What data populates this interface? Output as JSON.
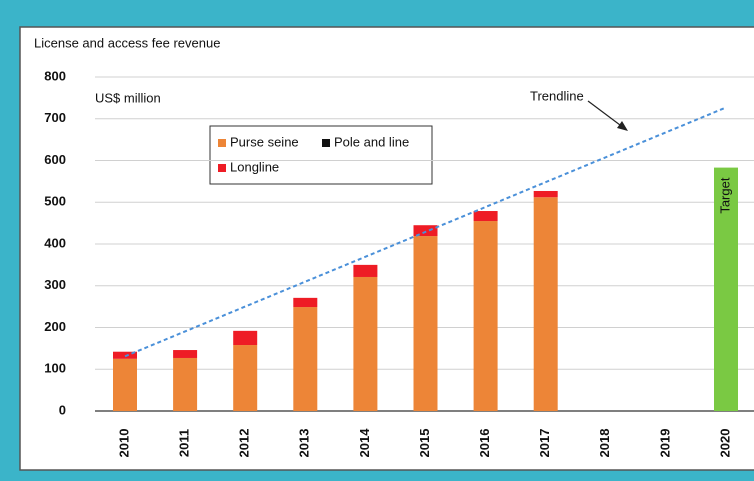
{
  "chart_data": {
    "type": "bar",
    "stacked": true,
    "title": "License and access fee revenue",
    "y_label": "US$ million",
    "categories": [
      "2010",
      "2011",
      "2012",
      "2013",
      "2014",
      "2015",
      "2016",
      "2017",
      "2018",
      "2019",
      "2020"
    ],
    "series": [
      {
        "name": "Purse seine",
        "color": "#ed8537",
        "values": [
          125,
          127,
          158,
          249,
          321,
          419,
          455,
          512,
          null,
          null,
          null
        ]
      },
      {
        "name": "Longline",
        "color": "#ee1c25",
        "values": [
          17,
          19,
          34,
          22,
          29,
          26,
          24,
          15,
          null,
          null,
          null
        ]
      },
      {
        "name": "Pole and line",
        "color": "#111111",
        "values": [
          0,
          0,
          0,
          0,
          0,
          0,
          0,
          0,
          null,
          null,
          null
        ]
      },
      {
        "name": "Target",
        "color": "#7ac943",
        "values": [
          null,
          null,
          null,
          null,
          null,
          null,
          null,
          null,
          null,
          null,
          583
        ]
      }
    ],
    "trendline": {
      "name": "Trendline",
      "color": "#4a90d9",
      "values": [
        131,
        null,
        null,
        null,
        null,
        null,
        null,
        null,
        null,
        null,
        727
      ]
    },
    "ylim": [
      0,
      800
    ],
    "yticks": [
      0,
      100,
      200,
      300,
      400,
      500,
      600,
      700,
      800
    ],
    "grid": true
  }
}
